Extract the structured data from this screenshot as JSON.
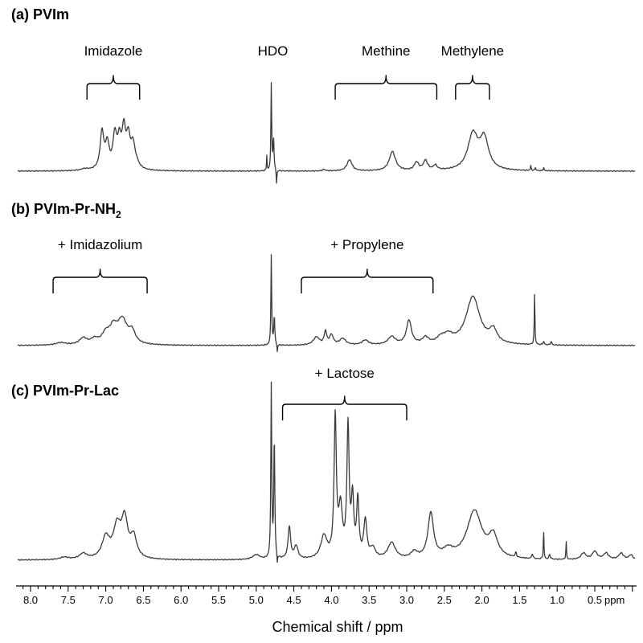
{
  "chart_data": {
    "type": "line",
    "subtype": "stacked NMR spectra",
    "xlabel": "Chemical shift / ppm",
    "x_unit": "ppm",
    "x_reversed": true,
    "xlim": [
      8.3,
      -0.4
    ],
    "x_ticks": [
      8.0,
      7.5,
      7.0,
      6.5,
      6.0,
      5.5,
      5.0,
      4.5,
      4.0,
      3.5,
      3.0,
      2.5,
      2.0,
      1.5,
      1.0,
      0.5
    ],
    "x_tick_labels": [
      "8.0",
      "7.5",
      "7.0",
      "6.5",
      "6.0",
      "5.5",
      "5.0",
      "4.5",
      "4.0",
      "3.5",
      "3.0",
      "2.5",
      "2.0",
      "1.5",
      "1.0",
      "0.5"
    ],
    "grid": false,
    "panels": [
      {
        "title_parts": {
          "main": "(a) PVIm",
          "sub": ""
        },
        "regions": [
          {
            "label": "Imidazole",
            "from": 7.25,
            "to": 6.55
          },
          {
            "label": "HDO",
            "from": null,
            "to": null,
            "at": 4.8
          },
          {
            "label": "Methine",
            "from": 3.95,
            "to": 2.6
          },
          {
            "label": "Methylene",
            "from": 2.35,
            "to": 1.9
          }
        ],
        "peaks": [
          {
            "x": 7.28,
            "h": 2,
            "w": 0.06
          },
          {
            "x": 7.05,
            "h": 46,
            "w": 0.03
          },
          {
            "x": 6.98,
            "h": 30,
            "w": 0.03
          },
          {
            "x": 6.88,
            "h": 40,
            "w": 0.03
          },
          {
            "x": 6.82,
            "h": 32,
            "w": 0.03
          },
          {
            "x": 6.76,
            "h": 46,
            "w": 0.03
          },
          {
            "x": 6.7,
            "h": 36,
            "w": 0.03
          },
          {
            "x": 6.64,
            "h": 26,
            "w": 0.03
          },
          {
            "x": 6.6,
            "h": 8,
            "w": 0.05
          },
          {
            "x": 4.86,
            "h": 20,
            "w": 0.004
          },
          {
            "x": 4.8,
            "h": 108,
            "w": 0.006
          },
          {
            "x": 4.77,
            "h": 40,
            "w": 0.008
          },
          {
            "x": 4.73,
            "h": -18,
            "w": 0.005
          },
          {
            "x": 4.1,
            "h": 2,
            "w": 0.02
          },
          {
            "x": 3.76,
            "h": 14,
            "w": 0.04
          },
          {
            "x": 3.19,
            "h": 24,
            "w": 0.05
          },
          {
            "x": 2.87,
            "h": 10,
            "w": 0.035
          },
          {
            "x": 2.75,
            "h": 12,
            "w": 0.035
          },
          {
            "x": 2.62,
            "h": 6,
            "w": 0.03
          },
          {
            "x": 2.12,
            "h": 44,
            "w": 0.08
          },
          {
            "x": 1.97,
            "h": 38,
            "w": 0.07
          },
          {
            "x": 1.35,
            "h": 6,
            "w": 0.006
          },
          {
            "x": 1.29,
            "h": 4,
            "w": 0.006
          },
          {
            "x": 1.18,
            "h": 4,
            "w": 0.006
          }
        ]
      },
      {
        "title_parts": {
          "main": "(b) PVIm-Pr-NH",
          "sub": "2"
        },
        "regions": [
          {
            "label": "+ Imidazolium",
            "from": 7.7,
            "to": 6.45
          },
          {
            "label": "+ Propylene",
            "from": 4.4,
            "to": 2.65
          }
        ],
        "peaks": [
          {
            "x": 7.6,
            "h": 3,
            "w": 0.08
          },
          {
            "x": 7.3,
            "h": 8,
            "w": 0.06
          },
          {
            "x": 7.15,
            "h": 6,
            "w": 0.06
          },
          {
            "x": 7.0,
            "h": 12,
            "w": 0.06
          },
          {
            "x": 6.9,
            "h": 18,
            "w": 0.06
          },
          {
            "x": 6.78,
            "h": 30,
            "w": 0.08
          },
          {
            "x": 6.65,
            "h": 14,
            "w": 0.05
          },
          {
            "x": 4.8,
            "h": 112,
            "w": 0.006
          },
          {
            "x": 4.76,
            "h": 36,
            "w": 0.008
          },
          {
            "x": 4.72,
            "h": -10,
            "w": 0.005
          },
          {
            "x": 4.2,
            "h": 10,
            "w": 0.05
          },
          {
            "x": 4.08,
            "h": 16,
            "w": 0.02
          },
          {
            "x": 4.0,
            "h": 12,
            "w": 0.03
          },
          {
            "x": 3.85,
            "h": 8,
            "w": 0.05
          },
          {
            "x": 3.55,
            "h": 6,
            "w": 0.05
          },
          {
            "x": 3.2,
            "h": 10,
            "w": 0.06
          },
          {
            "x": 2.97,
            "h": 30,
            "w": 0.04
          },
          {
            "x": 2.75,
            "h": 8,
            "w": 0.05
          },
          {
            "x": 2.55,
            "h": 6,
            "w": 0.06
          },
          {
            "x": 2.45,
            "h": 10,
            "w": 0.08
          },
          {
            "x": 2.12,
            "h": 60,
            "w": 0.11
          },
          {
            "x": 1.85,
            "h": 16,
            "w": 0.06
          },
          {
            "x": 1.3,
            "h": 66,
            "w": 0.005
          },
          {
            "x": 1.18,
            "h": 4,
            "w": 0.01
          },
          {
            "x": 1.08,
            "h": 4,
            "w": 0.01
          }
        ]
      },
      {
        "title_parts": {
          "main": "(c) PVIm-Pr-Lac",
          "sub": ""
        },
        "regions": [
          {
            "label": "+ Lactose",
            "from": 4.65,
            "to": 3.0
          }
        ],
        "peaks": [
          {
            "x": 7.55,
            "h": 3,
            "w": 0.07
          },
          {
            "x": 7.3,
            "h": 7,
            "w": 0.06
          },
          {
            "x": 7.0,
            "h": 26,
            "w": 0.06
          },
          {
            "x": 6.85,
            "h": 38,
            "w": 0.06
          },
          {
            "x": 6.75,
            "h": 46,
            "w": 0.05
          },
          {
            "x": 6.63,
            "h": 26,
            "w": 0.05
          },
          {
            "x": 5.0,
            "h": 6,
            "w": 0.06
          },
          {
            "x": 4.8,
            "h": 215,
            "w": 0.007
          },
          {
            "x": 4.76,
            "h": 150,
            "w": 0.008
          },
          {
            "x": 4.72,
            "h": -12,
            "w": 0.005
          },
          {
            "x": 4.56,
            "h": 40,
            "w": 0.02
          },
          {
            "x": 4.47,
            "h": 16,
            "w": 0.03
          },
          {
            "x": 4.1,
            "h": 28,
            "w": 0.05
          },
          {
            "x": 3.95,
            "h": 172,
            "w": 0.018
          },
          {
            "x": 3.88,
            "h": 60,
            "w": 0.03
          },
          {
            "x": 3.78,
            "h": 160,
            "w": 0.018
          },
          {
            "x": 3.72,
            "h": 70,
            "w": 0.02
          },
          {
            "x": 3.65,
            "h": 70,
            "w": 0.018
          },
          {
            "x": 3.55,
            "h": 46,
            "w": 0.025
          },
          {
            "x": 3.45,
            "h": 12,
            "w": 0.04
          },
          {
            "x": 3.2,
            "h": 20,
            "w": 0.06
          },
          {
            "x": 2.68,
            "h": 56,
            "w": 0.045
          },
          {
            "x": 2.9,
            "h": 8,
            "w": 0.05
          },
          {
            "x": 2.45,
            "h": 10,
            "w": 0.08
          },
          {
            "x": 2.1,
            "h": 60,
            "w": 0.12
          },
          {
            "x": 1.85,
            "h": 26,
            "w": 0.07
          },
          {
            "x": 1.55,
            "h": 6,
            "w": 0.01
          },
          {
            "x": 1.33,
            "h": 6,
            "w": 0.01
          },
          {
            "x": 1.18,
            "h": 36,
            "w": 0.005
          },
          {
            "x": 1.1,
            "h": 6,
            "w": 0.01
          },
          {
            "x": 0.88,
            "h": 22,
            "w": 0.005
          },
          {
            "x": 0.65,
            "h": 8,
            "w": 0.04
          },
          {
            "x": 0.5,
            "h": 10,
            "w": 0.04
          },
          {
            "x": 0.35,
            "h": 8,
            "w": 0.04
          },
          {
            "x": 0.15,
            "h": 8,
            "w": 0.04
          },
          {
            "x": 0.02,
            "h": 6,
            "w": 0.03
          }
        ]
      }
    ]
  }
}
